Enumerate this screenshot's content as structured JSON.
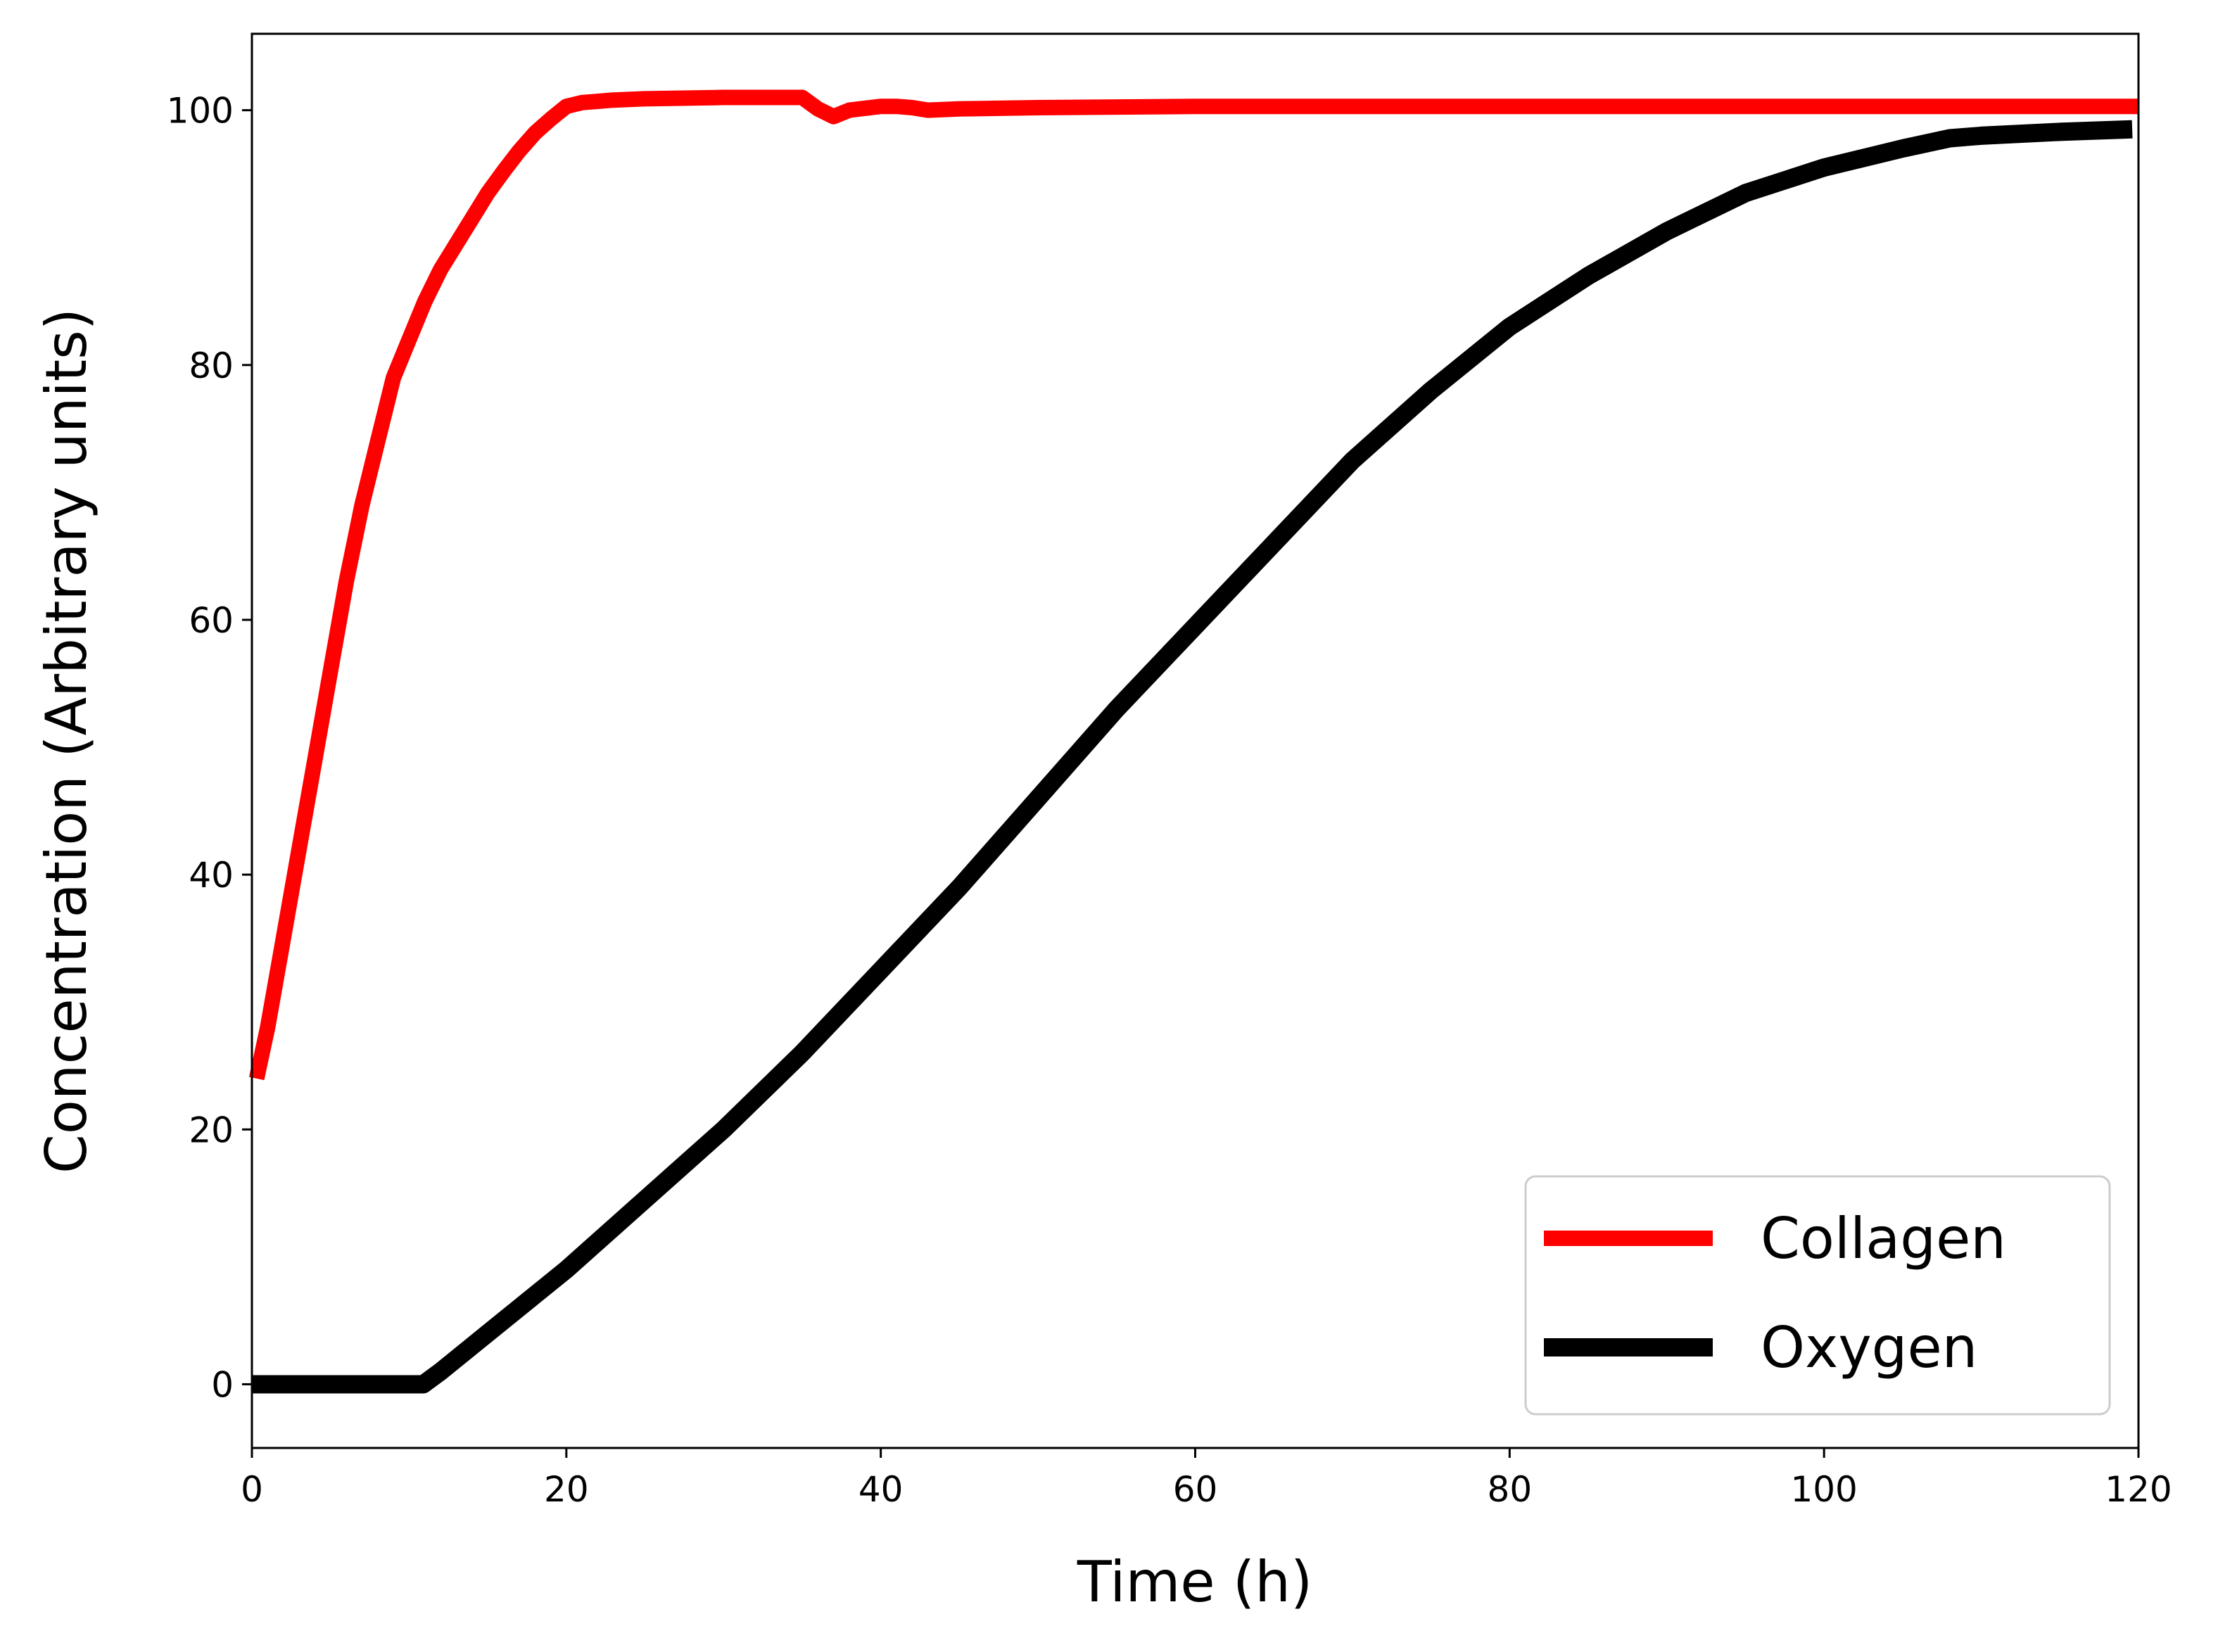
{
  "chart_data": {
    "type": "line",
    "title": "",
    "xlabel": "Time (h)",
    "ylabel": "Concentration (Arbitrary units)",
    "xlim": [
      0,
      120
    ],
    "ylim": [
      -5,
      106
    ],
    "xticks": [
      0,
      20,
      40,
      60,
      80,
      100,
      120
    ],
    "yticks": [
      0,
      20,
      40,
      60,
      80,
      100
    ],
    "grid": false,
    "legend_position": "bottom-right",
    "series": [
      {
        "name": "Collagen",
        "color": "#ff0000",
        "x": [
          0.3,
          1,
          2,
          3,
          4,
          5,
          6,
          7,
          8,
          9,
          10,
          11,
          12,
          13,
          14,
          15,
          16,
          17,
          18,
          19,
          20,
          21,
          23,
          25,
          30,
          33,
          35,
          36,
          37,
          38,
          40,
          41,
          42,
          43,
          45,
          50,
          60,
          70,
          80,
          90,
          100,
          110,
          120
        ],
        "y": [
          24,
          28,
          35,
          42,
          49,
          56,
          63,
          69,
          74,
          79,
          82,
          85,
          87.5,
          89.5,
          91.5,
          93.5,
          95.2,
          96.8,
          98.2,
          99.3,
          100.3,
          100.6,
          100.8,
          100.9,
          101,
          101,
          101,
          100.1,
          99.5,
          100,
          100.3,
          100.3,
          100.2,
          100,
          100.1,
          100.2,
          100.3,
          100.3,
          100.3,
          100.3,
          100.3,
          100.3,
          100.3
        ]
      },
      {
        "name": "Oxygen",
        "color": "#000000",
        "x": [
          0,
          10.9,
          12,
          15,
          20,
          25,
          30,
          35,
          40,
          45,
          50,
          55,
          60,
          65,
          70,
          75,
          80,
          85,
          90,
          95,
          100,
          105,
          108,
          110,
          115,
          119.6
        ],
        "y": [
          0,
          0,
          1,
          4,
          9,
          14.5,
          20,
          26,
          32.5,
          39,
          46,
          53,
          59.5,
          66,
          72.5,
          78,
          83,
          87,
          90.5,
          93.5,
          95.5,
          97,
          97.8,
          98,
          98.3,
          98.5
        ]
      }
    ]
  }
}
